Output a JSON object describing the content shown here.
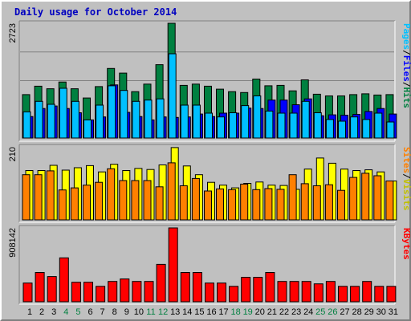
{
  "chart_data": [
    {
      "type": "bar",
      "title": "Daily usage for October 2014",
      "categories": [
        "1",
        "2",
        "3",
        "4",
        "5",
        "6",
        "7",
        "8",
        "9",
        "10",
        "11",
        "12",
        "13",
        "14",
        "15",
        "16",
        "17",
        "18",
        "19",
        "20",
        "21",
        "22",
        "23",
        "24",
        "25",
        "26",
        "27",
        "28",
        "29",
        "30",
        "31"
      ],
      "weekend_categories": [
        "4",
        "5",
        "11",
        "12",
        "18",
        "19",
        "25",
        "26"
      ],
      "ymax_label": "2723",
      "ylim": [
        0,
        2723
      ],
      "legend": [
        "Hits",
        "/",
        "Files",
        "/",
        "Pages"
      ],
      "series": [
        {
          "name": "Hits",
          "color": "#008040",
          "values": [
            1030,
            1230,
            1170,
            1330,
            1170,
            950,
            1220,
            1650,
            1540,
            1100,
            1280,
            1740,
            2723,
            1250,
            1280,
            1230,
            1160,
            1100,
            1080,
            1400,
            1240,
            1250,
            1120,
            1380,
            1040,
            1000,
            1000,
            1030,
            1050,
            1020,
            1030
          ]
        },
        {
          "name": "Files",
          "color": "#0000ff",
          "values": [
            510,
            700,
            760,
            700,
            600,
            430,
            500,
            1260,
            610,
            510,
            430,
            500,
            490,
            500,
            570,
            510,
            590,
            590,
            710,
            700,
            900,
            900,
            790,
            930,
            530,
            550,
            540,
            560,
            630,
            700,
            570
          ]
        },
        {
          "name": "Pages",
          "color": "#00c0ff",
          "values": [
            620,
            870,
            800,
            1180,
            870,
            430,
            780,
            1240,
            1130,
            870,
            900,
            930,
            2000,
            780,
            780,
            590,
            500,
            600,
            770,
            1000,
            640,
            590,
            590,
            870,
            600,
            440,
            400,
            500,
            440,
            590,
            380
          ]
        }
      ]
    },
    {
      "type": "bar",
      "categories": [
        "1",
        "2",
        "3",
        "4",
        "5",
        "6",
        "7",
        "8",
        "9",
        "10",
        "11",
        "12",
        "13",
        "14",
        "15",
        "16",
        "17",
        "18",
        "19",
        "20",
        "21",
        "22",
        "23",
        "24",
        "25",
        "26",
        "27",
        "28",
        "29",
        "30",
        "31"
      ],
      "ymax_label": "210",
      "ylim": [
        0,
        210
      ],
      "legend": [
        "Visits",
        "/",
        "Sites"
      ],
      "series": [
        {
          "name": "Visits",
          "color": "#ffff00",
          "values": [
            142,
            142,
            157,
            143,
            150,
            156,
            138,
            160,
            142,
            148,
            145,
            158,
            208,
            155,
            130,
            108,
            100,
            92,
            105,
            109,
            100,
            99,
            88,
            146,
            178,
            163,
            146,
            142,
            144,
            138,
            112
          ]
        },
        {
          "name": "Sites",
          "color": "#ff8000",
          "values": [
            130,
            130,
            141,
            86,
            92,
            100,
            108,
            147,
            113,
            113,
            113,
            95,
            164,
            98,
            119,
            83,
            89,
            87,
            103,
            87,
            90,
            88,
            130,
            104,
            98,
            101,
            85,
            122,
            134,
            127,
            112
          ]
        }
      ]
    },
    {
      "type": "bar",
      "categories": [
        "1",
        "2",
        "3",
        "4",
        "5",
        "6",
        "7",
        "8",
        "9",
        "10",
        "11",
        "12",
        "13",
        "14",
        "15",
        "16",
        "17",
        "18",
        "19",
        "20",
        "21",
        "22",
        "23",
        "24",
        "25",
        "26",
        "27",
        "28",
        "29",
        "30",
        "31"
      ],
      "ymax_label": "908142",
      "ylim": [
        0,
        908142
      ],
      "legend": [
        "KBytes"
      ],
      "series": [
        {
          "name": "KBytes",
          "color": "#ff0000",
          "values": [
            230000,
            360000,
            310000,
            540000,
            240000,
            240000,
            190000,
            250000,
            280000,
            250000,
            250000,
            460000,
            908142,
            360000,
            360000,
            230000,
            230000,
            190000,
            300000,
            300000,
            360000,
            250000,
            250000,
            250000,
            220000,
            250000,
            190000,
            190000,
            250000,
            190000,
            190000
          ]
        }
      ]
    }
  ]
}
